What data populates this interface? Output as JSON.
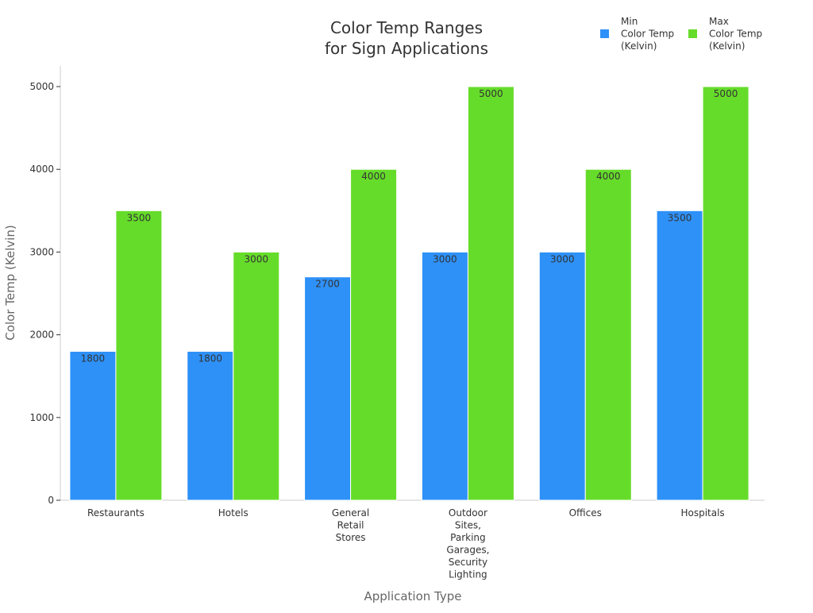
{
  "chart_data": {
    "type": "bar",
    "title": [
      "Color Temp Ranges",
      "for Sign Applications"
    ],
    "xlabel": "Application Type",
    "ylabel": "Color Temp (Kelvin)",
    "ylim": [
      0,
      5250
    ],
    "yticks": [
      0,
      1000,
      2000,
      3000,
      4000,
      5000
    ],
    "grid": false,
    "legend_position": "top-right",
    "categories": [
      [
        "Restaurants"
      ],
      [
        "Hotels"
      ],
      [
        "General",
        "Retail",
        "Stores"
      ],
      [
        "Outdoor",
        "Sites,",
        "Parking",
        "Garages,",
        "Security",
        "Lighting"
      ],
      [
        "Offices"
      ],
      [
        "Hospitals"
      ]
    ],
    "series": [
      {
        "name": [
          "Min",
          "Color Temp",
          "(Kelvin)"
        ],
        "color": "#2e91f8",
        "values": [
          1800,
          1800,
          2700,
          3000,
          3000,
          3500
        ]
      },
      {
        "name": [
          "Max",
          "Color Temp",
          "(Kelvin)"
        ],
        "color": "#66dc2a",
        "values": [
          3500,
          3000,
          4000,
          5000,
          4000,
          5000
        ]
      }
    ]
  }
}
